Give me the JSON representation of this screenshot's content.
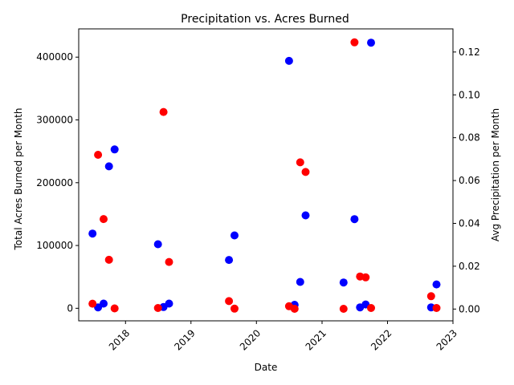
{
  "chart_data": {
    "type": "scatter",
    "title": "Precipitation vs. Acres Burned",
    "xlabel": "Date",
    "ylabel_left": "Total Acres Burned per Month",
    "ylabel_right": "Avg Precipitation per Month",
    "x_range": [
      "2017-04-15",
      "2023-01-01"
    ],
    "ylim_left": [
      -20000,
      445000
    ],
    "ylim_right": [
      -0.0055,
      0.1308
    ],
    "x_ticks": [
      "2018",
      "2019",
      "2020",
      "2021",
      "2022",
      "2023"
    ],
    "y_ticks_left": [
      0,
      100000,
      200000,
      300000,
      400000
    ],
    "y_ticks_right": [
      0.0,
      0.02,
      0.04,
      0.06,
      0.08,
      0.1,
      0.12
    ],
    "grid": false,
    "series": [
      {
        "axis": "left",
        "color": "#0000ff",
        "points": [
          {
            "x": "2017-07-01",
            "y": 119000
          },
          {
            "x": "2017-08-01",
            "y": 1500
          },
          {
            "x": "2017-09-01",
            "y": 7500
          },
          {
            "x": "2017-10-01",
            "y": 226000
          },
          {
            "x": "2017-11-01",
            "y": 253000
          },
          {
            "x": "2018-07-01",
            "y": 102000
          },
          {
            "x": "2018-08-01",
            "y": 2000
          },
          {
            "x": "2018-09-01",
            "y": 7500
          },
          {
            "x": "2019-08-01",
            "y": 77000
          },
          {
            "x": "2019-09-01",
            "y": 116000
          },
          {
            "x": "2020-07-01",
            "y": 394000
          },
          {
            "x": "2020-08-01",
            "y": 5500
          },
          {
            "x": "2020-09-01",
            "y": 42000
          },
          {
            "x": "2020-10-01",
            "y": 148000
          },
          {
            "x": "2021-05-01",
            "y": 41000
          },
          {
            "x": "2021-07-01",
            "y": 142000
          },
          {
            "x": "2021-08-01",
            "y": 1500
          },
          {
            "x": "2021-09-01",
            "y": 6000
          },
          {
            "x": "2021-10-01",
            "y": 423000
          },
          {
            "x": "2022-09-01",
            "y": 1500
          },
          {
            "x": "2022-10-01",
            "y": 38000
          }
        ]
      },
      {
        "axis": "right",
        "color": "#ff0000",
        "points": [
          {
            "x": "2017-07-01",
            "y": 0.0025
          },
          {
            "x": "2017-08-01",
            "y": 0.072
          },
          {
            "x": "2017-09-01",
            "y": 0.042
          },
          {
            "x": "2017-10-01",
            "y": 0.023
          },
          {
            "x": "2017-11-01",
            "y": 0.0003
          },
          {
            "x": "2018-07-01",
            "y": 0.0005
          },
          {
            "x": "2018-08-01",
            "y": 0.092
          },
          {
            "x": "2018-09-01",
            "y": 0.022
          },
          {
            "x": "2019-08-01",
            "y": 0.0037
          },
          {
            "x": "2019-09-01",
            "y": 0.0002
          },
          {
            "x": "2020-07-01",
            "y": 0.0013
          },
          {
            "x": "2020-08-01",
            "y": 0.0001
          },
          {
            "x": "2020-09-01",
            "y": 0.0685
          },
          {
            "x": "2020-10-01",
            "y": 0.064
          },
          {
            "x": "2021-05-01",
            "y": 0.0001
          },
          {
            "x": "2021-07-01",
            "y": 0.1245
          },
          {
            "x": "2021-08-01",
            "y": 0.0152
          },
          {
            "x": "2021-09-01",
            "y": 0.0148
          },
          {
            "x": "2021-10-01",
            "y": 0.0005
          },
          {
            "x": "2022-09-01",
            "y": 0.006
          },
          {
            "x": "2022-10-01",
            "y": 0.0005
          }
        ]
      }
    ]
  }
}
